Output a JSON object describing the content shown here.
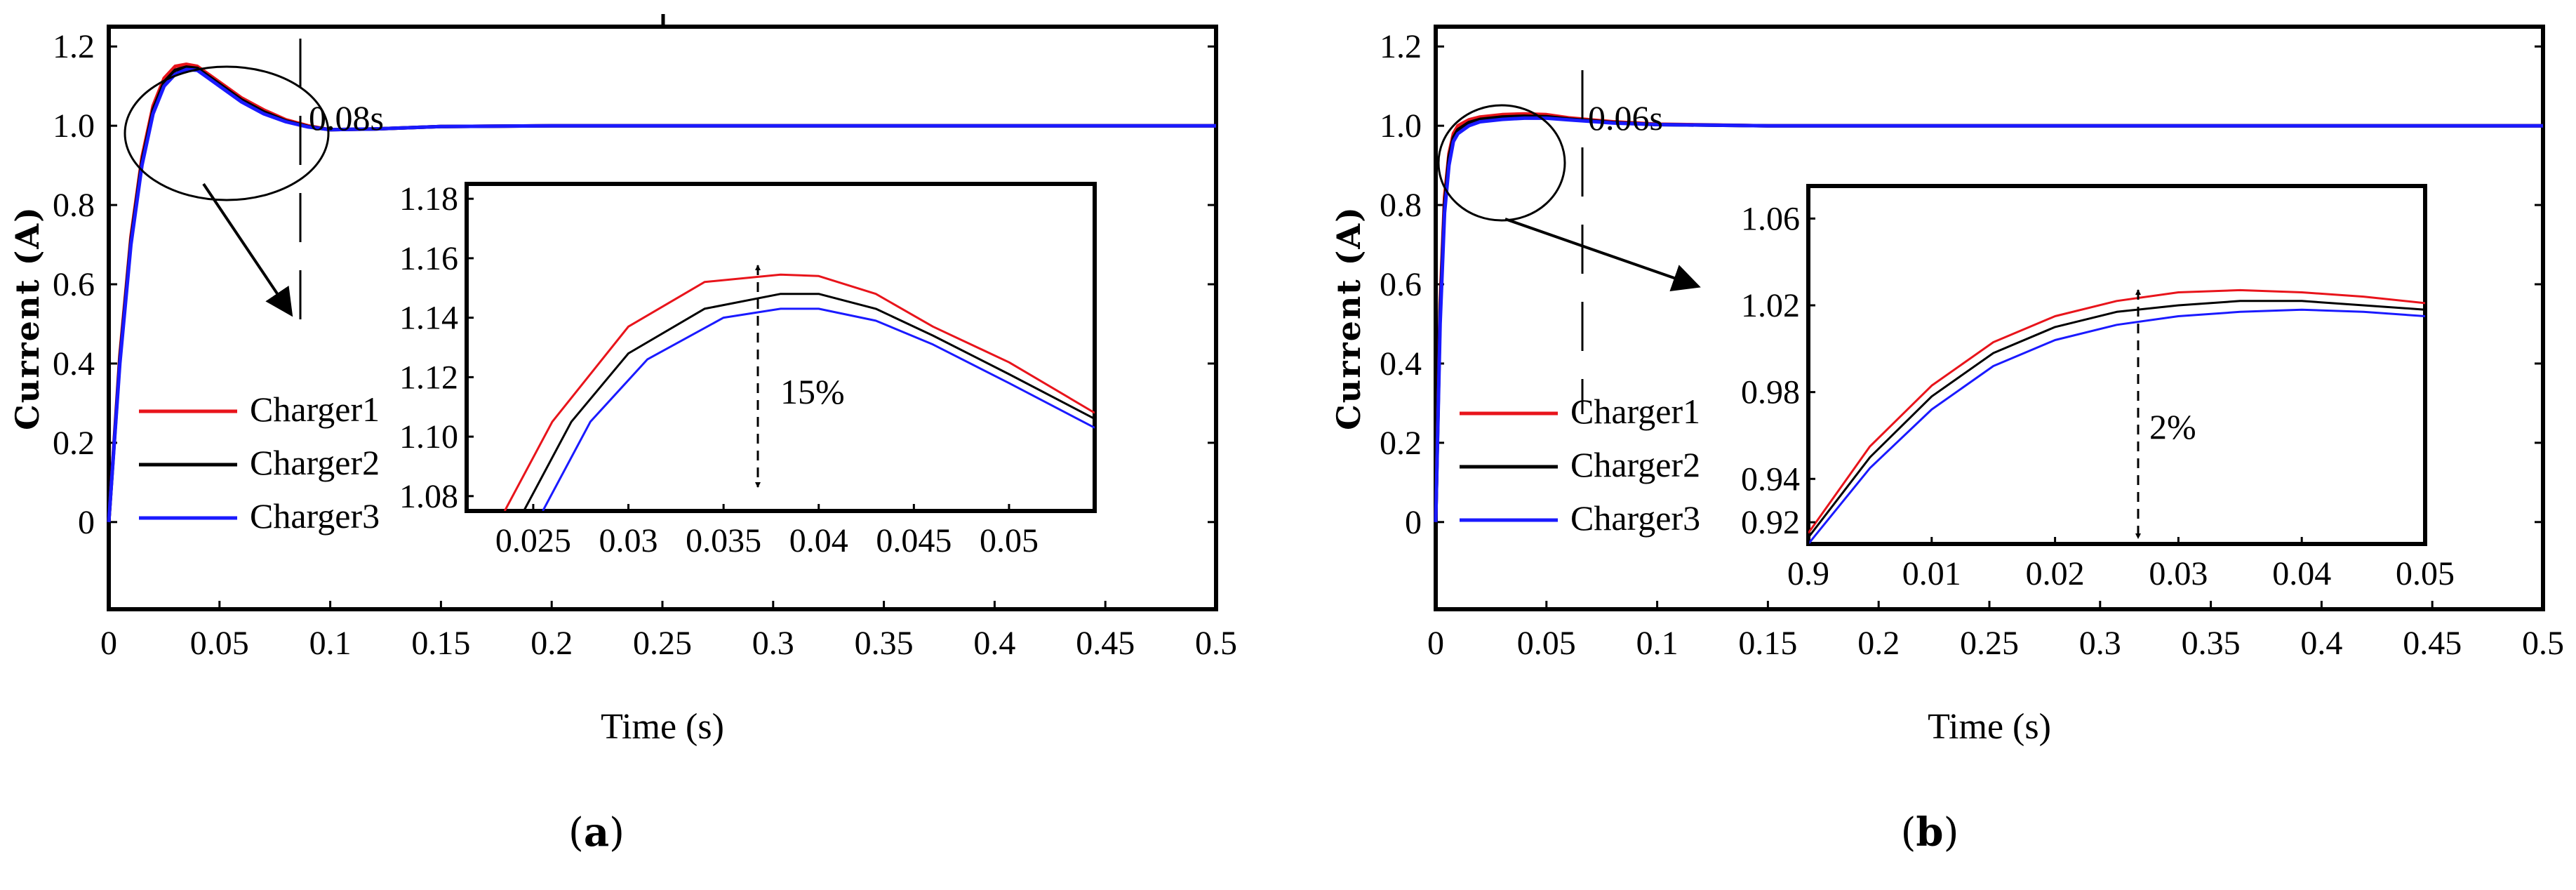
{
  "chart_data": [
    {
      "type": "line",
      "panel_label": "a",
      "xlabel": "Time (s)",
      "ylabel": "Current (A)",
      "xlim": [
        0,
        0.5
      ],
      "ylim": [
        -0.22,
        1.25
      ],
      "xticks": [
        "0",
        "0.05",
        "0.1",
        "0.15",
        "0.2",
        "0.25",
        "0.3",
        "0.35",
        "0.4",
        "0.45",
        "0.5"
      ],
      "yticks": [
        "0",
        "0.2",
        "0.4",
        "0.6",
        "0.8",
        "1.0",
        "1.2"
      ],
      "series": [
        {
          "name": "Charger1",
          "color": "#e8141b",
          "x": [
            0,
            0.005,
            0.01,
            0.015,
            0.02,
            0.025,
            0.03,
            0.035,
            0.04,
            0.045,
            0.05,
            0.06,
            0.07,
            0.08,
            0.09,
            0.1,
            0.12,
            0.15,
            0.2,
            0.3,
            0.4,
            0.5
          ],
          "y": [
            0,
            0.42,
            0.72,
            0.92,
            1.05,
            1.12,
            1.15,
            1.155,
            1.15,
            1.13,
            1.11,
            1.07,
            1.04,
            1.015,
            1.0,
            0.99,
            0.992,
            0.998,
            1.0,
            1.0,
            1.0,
            1.0
          ]
        },
        {
          "name": "Charger2",
          "color": "#000000",
          "x": [
            0,
            0.005,
            0.01,
            0.015,
            0.02,
            0.025,
            0.03,
            0.035,
            0.04,
            0.045,
            0.05,
            0.06,
            0.07,
            0.08,
            0.09,
            0.1,
            0.12,
            0.15,
            0.2,
            0.3,
            0.4,
            0.5
          ],
          "y": [
            0,
            0.41,
            0.71,
            0.91,
            1.04,
            1.11,
            1.14,
            1.148,
            1.145,
            1.125,
            1.105,
            1.065,
            1.035,
            1.012,
            0.998,
            0.99,
            0.992,
            0.998,
            1.0,
            1.0,
            1.0,
            1.0
          ]
        },
        {
          "name": "Charger3",
          "color": "#1a1aff",
          "x": [
            0,
            0.005,
            0.01,
            0.015,
            0.02,
            0.025,
            0.03,
            0.035,
            0.04,
            0.045,
            0.05,
            0.06,
            0.07,
            0.08,
            0.09,
            0.1,
            0.12,
            0.15,
            0.2,
            0.3,
            0.4,
            0.5
          ],
          "y": [
            0,
            0.4,
            0.7,
            0.9,
            1.03,
            1.1,
            1.13,
            1.142,
            1.14,
            1.12,
            1.1,
            1.06,
            1.03,
            1.01,
            0.997,
            0.99,
            0.992,
            0.998,
            1.0,
            1.0,
            1.0,
            1.0
          ]
        }
      ],
      "legend": [
        "Charger1",
        "Charger2",
        "Charger3"
      ],
      "annotations": {
        "settling_time": "0.08s",
        "overshoot": "15%"
      },
      "inset": {
        "xlim": [
          0.0215,
          0.0545
        ],
        "ylim": [
          1.075,
          1.185
        ],
        "xticks": [
          "0.025",
          "0.03",
          "0.035",
          "0.04",
          "0.045",
          "0.05"
        ],
        "yticks": [
          "1.08",
          "1.10",
          "1.12",
          "1.14",
          "1.16",
          "1.18"
        ],
        "series": [
          {
            "name": "Charger1",
            "color": "#e8141b",
            "x": [
              0.0235,
              0.026,
              0.03,
              0.034,
              0.038,
              0.04,
              0.043,
              0.046,
              0.05,
              0.0545
            ],
            "y": [
              1.075,
              1.105,
              1.137,
              1.152,
              1.1545,
              1.154,
              1.148,
              1.137,
              1.125,
              1.108
            ]
          },
          {
            "name": "Charger2",
            "color": "#000000",
            "x": [
              0.0245,
              0.027,
              0.03,
              0.034,
              0.038,
              0.04,
              0.043,
              0.046,
              0.05,
              0.0545
            ],
            "y": [
              1.075,
              1.105,
              1.128,
              1.143,
              1.148,
              1.148,
              1.143,
              1.134,
              1.121,
              1.106
            ]
          },
          {
            "name": "Charger3",
            "color": "#1a1aff",
            "x": [
              0.0255,
              0.028,
              0.031,
              0.035,
              0.038,
              0.04,
              0.043,
              0.046,
              0.05,
              0.0545
            ],
            "y": [
              1.075,
              1.105,
              1.126,
              1.14,
              1.143,
              1.143,
              1.139,
              1.131,
              1.118,
              1.103
            ]
          }
        ]
      }
    },
    {
      "type": "line",
      "panel_label": "b",
      "xlabel": "Time (s)",
      "ylabel": "Current (A)",
      "xlim": [
        0,
        0.5
      ],
      "ylim": [
        -0.22,
        1.25
      ],
      "xticks": [
        "0",
        "0.05",
        "0.1",
        "0.15",
        "0.2",
        "0.25",
        "0.3",
        "0.35",
        "0.4",
        "0.45",
        "0.5"
      ],
      "yticks": [
        "0",
        "0.2",
        "0.4",
        "0.6",
        "0.8",
        "1.0",
        "1.2"
      ],
      "series": [
        {
          "name": "Charger1",
          "color": "#e8141b",
          "x": [
            0,
            0.002,
            0.004,
            0.006,
            0.008,
            0.01,
            0.015,
            0.02,
            0.03,
            0.04,
            0.05,
            0.06,
            0.08,
            0.1,
            0.15,
            0.2,
            0.3,
            0.4,
            0.5
          ],
          "y": [
            0,
            0.55,
            0.82,
            0.93,
            0.98,
            1.0,
            1.015,
            1.022,
            1.028,
            1.03,
            1.028,
            1.02,
            1.01,
            1.004,
            1.0,
            1.0,
            1.0,
            1.0,
            1.0
          ]
        },
        {
          "name": "Charger2",
          "color": "#000000",
          "x": [
            0,
            0.002,
            0.004,
            0.006,
            0.008,
            0.01,
            0.015,
            0.02,
            0.03,
            0.04,
            0.05,
            0.06,
            0.08,
            0.1,
            0.15,
            0.2,
            0.3,
            0.4,
            0.5
          ],
          "y": [
            0,
            0.53,
            0.8,
            0.92,
            0.97,
            0.99,
            1.008,
            1.016,
            1.022,
            1.024,
            1.023,
            1.017,
            1.008,
            1.003,
            1.0,
            1.0,
            1.0,
            1.0,
            1.0
          ]
        },
        {
          "name": "Charger3",
          "color": "#1a1aff",
          "x": [
            0,
            0.002,
            0.004,
            0.006,
            0.008,
            0.01,
            0.015,
            0.02,
            0.03,
            0.04,
            0.05,
            0.06,
            0.08,
            0.1,
            0.15,
            0.2,
            0.3,
            0.4,
            0.5
          ],
          "y": [
            0,
            0.5,
            0.78,
            0.9,
            0.96,
            0.98,
            1.0,
            1.01,
            1.016,
            1.019,
            1.019,
            1.015,
            1.007,
            1.003,
            1.0,
            1.0,
            1.0,
            1.0,
            1.0
          ]
        }
      ],
      "legend": [
        "Charger1",
        "Charger2",
        "Charger3"
      ],
      "annotations": {
        "settling_time": "0.06s",
        "overshoot": "2%"
      },
      "inset": {
        "xlim": [
          0.0,
          0.05
        ],
        "ylim": [
          0.91,
          1.075
        ],
        "xticks": [
          "0.9",
          "0.01",
          "0.02",
          "0.03",
          "0.04",
          "0.05"
        ],
        "yticks": [
          "0.92",
          "0.94",
          "0.98",
          "1.02",
          "1.06"
        ],
        "series": [
          {
            "name": "Charger1",
            "color": "#e8141b",
            "x": [
              0,
              0.005,
              0.01,
              0.015,
              0.02,
              0.025,
              0.03,
              0.035,
              0.04,
              0.045,
              0.05
            ],
            "y": [
              0.915,
              0.955,
              0.983,
              1.003,
              1.015,
              1.022,
              1.026,
              1.027,
              1.026,
              1.024,
              1.021
            ]
          },
          {
            "name": "Charger2",
            "color": "#000000",
            "x": [
              0,
              0.005,
              0.01,
              0.015,
              0.02,
              0.025,
              0.03,
              0.035,
              0.04,
              0.045,
              0.05
            ],
            "y": [
              0.913,
              0.95,
              0.978,
              0.998,
              1.01,
              1.017,
              1.02,
              1.022,
              1.022,
              1.02,
              1.018
            ]
          },
          {
            "name": "Charger3",
            "color": "#1a1aff",
            "x": [
              0,
              0.005,
              0.01,
              0.015,
              0.02,
              0.025,
              0.03,
              0.035,
              0.04,
              0.045,
              0.05
            ],
            "y": [
              0.91,
              0.945,
              0.972,
              0.992,
              1.004,
              1.011,
              1.015,
              1.017,
              1.018,
              1.017,
              1.015
            ]
          }
        ]
      }
    }
  ]
}
